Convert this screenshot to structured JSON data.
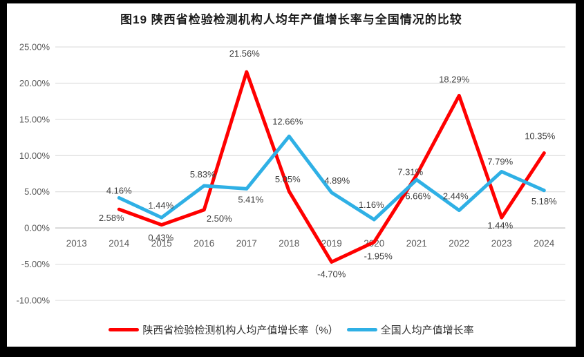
{
  "page": {
    "background": "#000000",
    "panel_background": "#ffffff"
  },
  "chart": {
    "title": "图19 陕西省检验检测机构人均年产值增长率与全国情况的比较"
  },
  "legend": {
    "items": [
      {
        "label": "陕西省检验检测机构人均产值增长率（%）",
        "color": "#ff0000"
      },
      {
        "label": "全国人均产值增长率",
        "color": "#2fb0e5"
      }
    ]
  },
  "chart_data": {
    "type": "line",
    "title": "图19 陕西省检验检测机构人均年产值增长率与全国情况的比较",
    "categories": [
      "2013",
      "2014",
      "2015",
      "2016",
      "2017",
      "2018",
      "2019",
      "2020",
      "2021",
      "2022",
      "2023",
      "2024"
    ],
    "series": [
      {
        "name": "陕西省检验检测机构人均产值增长率（%）",
        "color": "#ff0000",
        "values": [
          null,
          2.58,
          0.43,
          2.5,
          21.56,
          5.05,
          -4.7,
          -1.95,
          7.31,
          18.29,
          1.44,
          10.35
        ],
        "labels": [
          null,
          "2.58%",
          "0.43%",
          "2.50%",
          "21.56%",
          "5.05%",
          "-4.70%",
          "-1.95%",
          "7.31%",
          "18.29%",
          "1.44%",
          "10.35%"
        ]
      },
      {
        "name": "全国人均产值增长率",
        "color": "#2fb0e5",
        "values": [
          null,
          4.16,
          1.44,
          5.83,
          5.41,
          12.66,
          4.89,
          1.16,
          6.66,
          2.44,
          7.79,
          5.18
        ],
        "labels": [
          null,
          "4.16%",
          "1.44%",
          "5.83%",
          "5.41%",
          "12.66%",
          "4.89%",
          "1.16%",
          "6.66%",
          "2.44%",
          "7.79%",
          "5.18%"
        ]
      }
    ],
    "xlabel": "",
    "ylabel": "",
    "ylim": [
      -10,
      25
    ],
    "ytick_step": 5,
    "ytick_labels": [
      "25.00%",
      "20.00%",
      "15.00%",
      "10.00%",
      "5.00%",
      "0.00%",
      "-5.00%",
      "-10.00%"
    ],
    "grid": true,
    "gridline_color": "#d9d9d9",
    "axis_line_color": "#bfbfbf",
    "legend_position": "bottom"
  }
}
